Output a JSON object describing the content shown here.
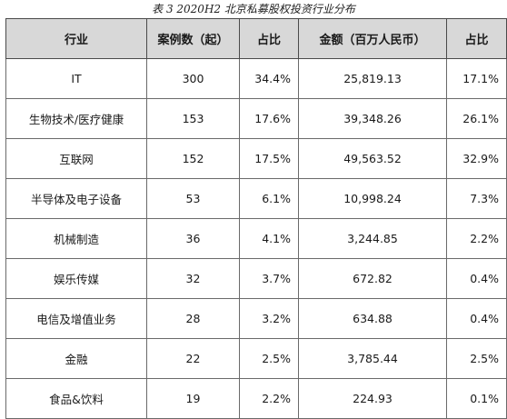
{
  "caption": "表 3  2020H2 北京私募股权投资行业分布",
  "table": {
    "headers": [
      "行业",
      "案例数（起）",
      "占比",
      "金额（百万人民币）",
      "占比"
    ],
    "rows": [
      [
        "IT",
        "300",
        "34.4%",
        "25,819.13",
        "17.1%"
      ],
      [
        "生物技术/医疗健康",
        "153",
        "17.6%",
        "39,348.26",
        "26.1%"
      ],
      [
        "互联网",
        "152",
        "17.5%",
        "49,563.52",
        "32.9%"
      ],
      [
        "半导体及电子设备",
        "53",
        "6.1%",
        "10,998.24",
        "7.3%"
      ],
      [
        "机械制造",
        "36",
        "4.1%",
        "3,244.85",
        "2.2%"
      ],
      [
        "娱乐传媒",
        "32",
        "3.7%",
        "672.82",
        "0.4%"
      ],
      [
        "电信及增值业务",
        "28",
        "3.2%",
        "634.88",
        "0.4%"
      ],
      [
        "金融",
        "22",
        "2.5%",
        "3,785.44",
        "2.5%"
      ],
      [
        "食品&饮料",
        "19",
        "2.2%",
        "224.93",
        "0.1%"
      ]
    ]
  }
}
